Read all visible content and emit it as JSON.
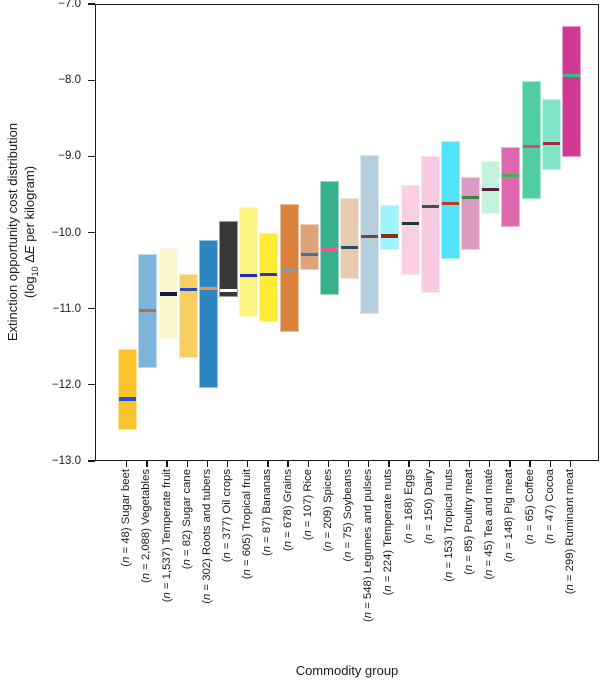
{
  "y_axis": {
    "label_line1": "Extinction opportunity cost distribution",
    "label_line2": {
      "p1": "(log",
      "sub": "10",
      "p2": " Δ",
      "italic": "E",
      "p3": " per kilogram)"
    },
    "tick_labels": [
      "−7.0",
      "−8.0",
      "−9.0",
      "−10.0",
      "−11.0",
      "−12.0",
      "−13.0"
    ]
  },
  "x_axis": {
    "label": "Commodity group"
  },
  "chart_data": {
    "type": "bar",
    "subtype": "floating-range-bars-with-median-line",
    "title": "",
    "xlabel": "Commodity group",
    "ylabel": "Extinction opportunity cost distribution (log10 ΔE per kilogram)",
    "ylim": [
      -13.0,
      -7.0
    ],
    "y_ticks": [
      -7.0,
      -8.0,
      -9.0,
      -10.0,
      -11.0,
      -12.0,
      -13.0
    ],
    "grid": false,
    "legend": false,
    "categories": [
      {
        "name": "Sugar beet",
        "n": "48",
        "label": "(n = 48) Sugar beet",
        "min": -12.58,
        "max": -11.51,
        "median": -12.18,
        "color": "#FCC32D",
        "median_color": "#2452D9"
      },
      {
        "name": "Vegetables",
        "n": "2,088",
        "label": "(n = 2,088) Vegetables",
        "min": -11.77,
        "max": -10.27,
        "median": -11.02,
        "color": "#7CB5DB",
        "median_color": "#C06A35"
      },
      {
        "name": "Temperate fruit",
        "n": "1,537",
        "label": "(n = 1,537) Temperate fruit",
        "min": -11.38,
        "max": -10.19,
        "median": -10.8,
        "color": "#FBF7CC",
        "median_color": "#131C3F"
      },
      {
        "name": "Sugar cane",
        "n": "82",
        "label": "(n = 82) Sugar cane",
        "min": -11.63,
        "max": -10.53,
        "median": -10.74,
        "color": "#F6CE61",
        "median_color": "#2B49C0"
      },
      {
        "name": "Roots and tubers",
        "n": "302",
        "label": "(n = 302) Roots and tubers",
        "min": -12.03,
        "max": -10.09,
        "median": -10.73,
        "color": "#2E86C0",
        "median_color": "#F0924E"
      },
      {
        "name": "Oil crops",
        "n": "377",
        "label": "(n = 377) Oil crops",
        "min": -10.84,
        "max": -9.84,
        "median": -10.75,
        "color": "#383838",
        "median_color": "#FFFFFF"
      },
      {
        "name": "Tropical fruit",
        "n": "605",
        "label": "(n = 605) Tropical fruit",
        "min": -11.1,
        "max": -9.65,
        "median": -10.56,
        "color": "#FDF382",
        "median_color": "#1C2BBE"
      },
      {
        "name": "Bananas",
        "n": "87",
        "label": "(n = 87) Bananas",
        "min": -11.16,
        "max": -9.99,
        "median": -10.55,
        "color": "#FFEB36",
        "median_color": "#2238C8"
      },
      {
        "name": "Grains",
        "n": "678",
        "label": "(n = 678) Grains",
        "min": -11.29,
        "max": -9.61,
        "median": -10.49,
        "color": "#DA823C",
        "median_color": "#55AADF"
      },
      {
        "name": "Rice",
        "n": "107",
        "label": "(n = 107) Rice",
        "min": -10.48,
        "max": -9.87,
        "median": -10.28,
        "color": "#DFA377",
        "median_color": "#3C72B0"
      },
      {
        "name": "Spices",
        "n": "209",
        "label": "(n = 209) Spices",
        "min": -10.81,
        "max": -9.31,
        "median": -10.21,
        "color": "#35AF8C",
        "median_color": "#F05A8E"
      },
      {
        "name": "Soybeans",
        "n": "75",
        "label": "(n = 75) Soybeans",
        "min": -10.6,
        "max": -9.54,
        "median": -10.19,
        "color": "#E7CBAE",
        "median_color": "#2F4A63"
      },
      {
        "name": "Legumes and pulses",
        "n": "548",
        "label": "(n = 548) Legumes and pulses",
        "min": -11.06,
        "max": -8.97,
        "median": -10.05,
        "color": "#B5CEDD",
        "median_color": "#6B4A38"
      },
      {
        "name": "Temperate nuts",
        "n": "224",
        "label": "(n = 224) Temperate nuts",
        "min": -10.22,
        "max": -9.63,
        "median": -10.04,
        "color": "#9FF3FD",
        "median_color": "#8E2D1C"
      },
      {
        "name": "Eggs",
        "n": "168",
        "label": "(n = 168) Eggs",
        "min": -10.54,
        "max": -9.36,
        "median": -9.88,
        "color": "#FBD0E4",
        "median_color": "#1C3A2A"
      },
      {
        "name": "Dairy",
        "n": "150",
        "label": "(n = 150) Dairy",
        "min": -10.78,
        "max": -8.98,
        "median": -9.65,
        "color": "#F8CBE3",
        "median_color": "#3E514A"
      },
      {
        "name": "Tropical nuts",
        "n": "153",
        "label": "(n = 153) Tropical nuts",
        "min": -10.33,
        "max": -8.79,
        "median": -9.61,
        "color": "#54E2FB",
        "median_color": "#BC3A24"
      },
      {
        "name": "Poultry meat",
        "n": "85",
        "label": "(n = 85) Poultry meat",
        "min": -10.21,
        "max": -9.26,
        "median": -9.53,
        "color": "#DA9BC3",
        "median_color": "#41804F"
      },
      {
        "name": "Tea and maté",
        "n": "45",
        "label": "(n = 45) Tea and maté",
        "min": -9.75,
        "max": -9.05,
        "median": -9.43,
        "color": "#C2F1DC",
        "median_color": "#59203C"
      },
      {
        "name": "Pig meat",
        "n": "148",
        "label": "(n = 148) Pig meat",
        "min": -9.91,
        "max": -8.87,
        "median": -9.24,
        "color": "#DC69AF",
        "median_color": "#3FAF5C"
      },
      {
        "name": "Coffee",
        "n": "65",
        "label": "(n = 65) Coffee",
        "min": -9.55,
        "max": -8.0,
        "median": -8.86,
        "color": "#50CEA2",
        "median_color": "#E0447F"
      },
      {
        "name": "Cocoa",
        "n": "47",
        "label": "(n = 47) Cocoa",
        "min": -9.17,
        "max": -8.23,
        "median": -8.82,
        "color": "#80E5C6",
        "median_color": "#9C2F44"
      },
      {
        "name": "Ruminant meat",
        "n": "299",
        "label": "(n = 299) Ruminant meat",
        "min": -9.0,
        "max": -7.27,
        "median": -7.93,
        "color": "#D13A92",
        "median_color": "#2EC27E"
      }
    ]
  }
}
